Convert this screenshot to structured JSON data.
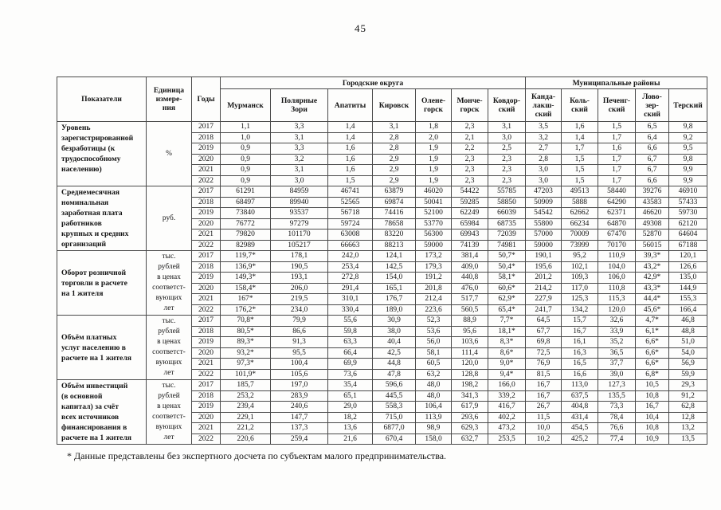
{
  "page": {
    "number": "45",
    "footnote": "* Данные представлены без экспертного досчета по субъектам малого предпринимательства."
  },
  "table": {
    "header": {
      "col_indicators": "Показатели",
      "col_unit": "Единица\nизмере-\nния",
      "col_years": "Годы",
      "group_urban": "Городские округа",
      "group_municipal": "Муниципальные районы",
      "urban_columns": [
        "Мурманск",
        "Полярные\nЗори",
        "Апатиты",
        "Кировск",
        "Олене-\nгорск",
        "Монче-\nгорск",
        "Ковдор-\nский"
      ],
      "municipal_columns": [
        "Канда-\nлакш-\nский",
        "Коль-\nский",
        "Печенг-\nский",
        "Лово-\nзер-\nский",
        "Терский"
      ]
    },
    "blocks": [
      {
        "indicator": "Уровень\nзарегистрированной\nбезработицы (к\nтрудоспособному\nнаселению)",
        "unit": "%",
        "rows": [
          {
            "year": "2017",
            "values": [
              "1,1",
              "3,3",
              "1,4",
              "3,1",
              "1,8",
              "2,3",
              "3,1",
              "3,5",
              "1,6",
              "1,5",
              "6,5",
              "9,8"
            ]
          },
          {
            "year": "2018",
            "values": [
              "1,0",
              "3,1",
              "1,4",
              "2,8",
              "2,0",
              "2,1",
              "3,0",
              "3,2",
              "1,4",
              "1,7",
              "6,4",
              "9,2"
            ]
          },
          {
            "year": "2019",
            "values": [
              "0,9",
              "3,3",
              "1,6",
              "2,8",
              "1,9",
              "2,2",
              "2,5",
              "2,7",
              "1,7",
              "1,6",
              "6,6",
              "9,5"
            ]
          },
          {
            "year": "2020",
            "values": [
              "0,9",
              "3,2",
              "1,6",
              "2,9",
              "1,9",
              "2,3",
              "2,3",
              "2,8",
              "1,5",
              "1,7",
              "6,7",
              "9,8"
            ]
          },
          {
            "year": "2021",
            "values": [
              "0,9",
              "3,1",
              "1,6",
              "2,9",
              "1,9",
              "2,3",
              "2,3",
              "3,0",
              "1,5",
              "1,7",
              "6,7",
              "9,9"
            ]
          },
          {
            "year": "2022",
            "values": [
              "0,9",
              "3,0",
              "1,5",
              "2,9",
              "1,9",
              "2,3",
              "2,3",
              "3,0",
              "1,5",
              "1,7",
              "6,6",
              "9,9"
            ]
          }
        ]
      },
      {
        "indicator": "Среднемесячная\nноминальная\nзаработная плата\nработников\nкрупных и средних\nорганизаций",
        "unit": "руб.",
        "rows": [
          {
            "year": "2017",
            "values": [
              "61291",
              "84959",
              "46741",
              "63879",
              "46020",
              "54422",
              "55785",
              "47203",
              "49513",
              "58440",
              "39276",
              "46910"
            ]
          },
          {
            "year": "2018",
            "values": [
              "68497",
              "89940",
              "52565",
              "69874",
              "50041",
              "59285",
              "58850",
              "50909",
              "5888",
              "64290",
              "43583",
              "57433"
            ]
          },
          {
            "year": "2019",
            "values": [
              "73840",
              "93537",
              "56718",
              "74416",
              "52100",
              "62249",
              "66039",
              "54542",
              "62662",
              "62371",
              "46620",
              "59730"
            ]
          },
          {
            "year": "2020",
            "values": [
              "76772",
              "97279",
              "59724",
              "78658",
              "53770",
              "65984",
              "68735",
              "55800",
              "66234",
              "64870",
              "49308",
              "62120"
            ]
          },
          {
            "year": "2021",
            "values": [
              "79820",
              "101170",
              "63008",
              "83220",
              "56300",
              "69943",
              "72039",
              "57000",
              "70009",
              "67470",
              "52870",
              "64604"
            ]
          },
          {
            "year": "2022",
            "values": [
              "82989",
              "105217",
              "66663",
              "88213",
              "59000",
              "74139",
              "74981",
              "59000",
              "73999",
              "70170",
              "56015",
              "67188"
            ]
          }
        ]
      },
      {
        "indicator": "Оборот розничной\nторговли в расчете\nна 1 жителя",
        "unit": "тыс.\nрублей\nв ценах\nсоответст-\nвующих\nлет",
        "rows": [
          {
            "year": "2017",
            "values": [
              "119,7*",
              "178,1",
              "242,0",
              "124,1",
              "173,2",
              "381,4",
              "50,7*",
              "190,1",
              "95,2",
              "110,9",
              "39,3*",
              "120,1"
            ]
          },
          {
            "year": "2018",
            "values": [
              "136,9*",
              "190,5",
              "253,4",
              "142,5",
              "179,3",
              "409,0",
              "50,4*",
              "195,6",
              "102,1",
              "104,0",
              "43,2*",
              "126,6"
            ]
          },
          {
            "year": "2019",
            "values": [
              "149,3*",
              "193,1",
              "272,8",
              "154,0",
              "191,2",
              "440,8",
              "58,1*",
              "201,2",
              "109,3",
              "106,0",
              "42,9*",
              "135,0"
            ]
          },
          {
            "year": "2020",
            "values": [
              "158,4*",
              "206,0",
              "291,4",
              "165,1",
              "201,8",
              "476,0",
              "60,6*",
              "214,2",
              "117,0",
              "110,8",
              "43,3*",
              "144,9"
            ]
          },
          {
            "year": "2021",
            "values": [
              "167*",
              "219,5",
              "310,1",
              "176,7",
              "212,4",
              "517,7",
              "62,9*",
              "227,9",
              "125,3",
              "115,3",
              "44,4*",
              "155,3"
            ]
          },
          {
            "year": "2022",
            "values": [
              "176,2*",
              "234,0",
              "330,4",
              "189,0",
              "223,6",
              "560,5",
              "65,4*",
              "241,7",
              "134,2",
              "120,0",
              "45,6*",
              "166,4"
            ]
          }
        ]
      },
      {
        "indicator": "Объём платных\nуслуг населению  в\nрасчете на 1 жителя",
        "unit": "тыс.\nрублей\nв ценах\nсоответст-\nвующих\nлет",
        "rows": [
          {
            "year": "2017",
            "values": [
              "70,8*",
              "79,9",
              "55,6",
              "30,9",
              "52,3",
              "88,9",
              "7,7*",
              "64,5",
              "15,7",
              "32,6",
              "4,7*",
              "46,8"
            ]
          },
          {
            "year": "2018",
            "values": [
              "80,5*",
              "86,6",
              "59,8",
              "38,0",
              "53,6",
              "95,6",
              "18,1*",
              "67,7",
              "16,7",
              "33,9",
              "6,1*",
              "48,8"
            ]
          },
          {
            "year": "2019",
            "values": [
              "89,3*",
              "91,3",
              "63,3",
              "40,4",
              "56,0",
              "103,6",
              "8,3*",
              "69,8",
              "16,1",
              "35,2",
              "6,6*",
              "51,0"
            ]
          },
          {
            "year": "2020",
            "values": [
              "93,2*",
              "95,5",
              "66,4",
              "42,5",
              "58,1",
              "111,4",
              "8,6*",
              "72,5",
              "16,3",
              "36,5",
              "6,6*",
              "54,0"
            ]
          },
          {
            "year": "2021",
            "values": [
              "97,3*",
              "100,4",
              "69,9",
              "44,8",
              "60,5",
              "120,0",
              "9,0*",
              "76,9",
              "16,5",
              "37,7",
              "6,6*",
              "56,9"
            ]
          },
          {
            "year": "2022",
            "values": [
              "101,9*",
              "105,6",
              "73,6",
              "47,8",
              "63,2",
              "128,8",
              "9,4*",
              "81,5",
              "16,6",
              "39,0",
              "6,8*",
              "59,9"
            ]
          }
        ]
      },
      {
        "indicator": "Объём инвестиций\n(в основной\nкапитал) за счёт\nвсех источников\nфинансирования в\nрасчете на 1 жителя",
        "unit": "тыс.\nрублей\nв ценах\nсоответст-\nвующих\nлет",
        "rows": [
          {
            "year": "2017",
            "values": [
              "185,7",
              "197,0",
              "35,4",
              "596,6",
              "48,0",
              "198,2",
              "166,0",
              "16,7",
              "113,0",
              "127,3",
              "10,5",
              "29,3"
            ]
          },
          {
            "year": "2018",
            "values": [
              "253,2",
              "283,9",
              "65,1",
              "445,5",
              "48,0",
              "341,3",
              "339,2",
              "16,7",
              "637,5",
              "135,5",
              "10,8",
              "91,2"
            ]
          },
          {
            "year": "2019",
            "values": [
              "239,4",
              "240,6",
              "29,0",
              "558,3",
              "106,4",
              "617,9",
              "416,7",
              "26,7",
              "404,8",
              "73,3",
              "16,7",
              "62,8"
            ]
          },
          {
            "year": "2020",
            "values": [
              "229,1",
              "147,7",
              "18,2",
              "715,0",
              "113,9",
              "293,6",
              "402,2",
              "11,5",
              "431,4",
              "78,4",
              "10,4",
              "12,8"
            ]
          },
          {
            "year": "2021",
            "values": [
              "221,2",
              "137,3",
              "13,6",
              "6877,0",
              "98,9",
              "629,3",
              "473,2",
              "10,0",
              "454,5",
              "76,6",
              "10,8",
              "13,2"
            ]
          },
          {
            "year": "2022",
            "values": [
              "220,6",
              "259,4",
              "21,6",
              "670,4",
              "158,0",
              "632,7",
              "253,5",
              "10,2",
              "425,2",
              "77,4",
              "10,9",
              "13,5"
            ]
          }
        ]
      }
    ]
  }
}
